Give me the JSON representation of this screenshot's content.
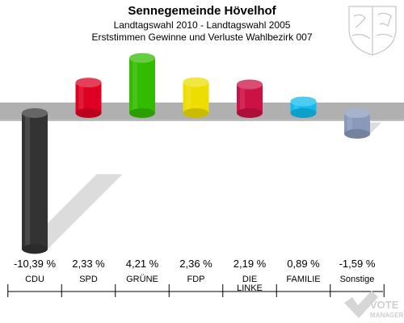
{
  "chart_data": {
    "type": "bar",
    "title": "Sennegemeinde Hövelhof",
    "subtitle_1": "Landtagswahl 2010 - Landtagswahl 2005",
    "subtitle_2": "Erststimmen Gewinne und Verluste Wahlbezirk 007",
    "categories": [
      "CDU",
      "SPD",
      "GRÜNE",
      "FDP",
      "DIE LINKE",
      "FAMILIE",
      "Sonstige"
    ],
    "category_lines": [
      [
        "CDU"
      ],
      [
        "SPD"
      ],
      [
        "GRÜNE"
      ],
      [
        "FDP"
      ],
      [
        "DIE",
        "LINKE"
      ],
      [
        "FAMILIE"
      ],
      [
        "Sonstige"
      ]
    ],
    "values": [
      -10.39,
      2.33,
      4.21,
      2.36,
      2.19,
      0.89,
      -1.59
    ],
    "value_labels": [
      "-10,39 %",
      "2,33 %",
      "4,21 %",
      "2,36 %",
      "2,19 %",
      "0,89 %",
      "-1,59 %"
    ],
    "colors": [
      "#333333",
      "#dd0022",
      "#33bb00",
      "#eedd00",
      "#cc1144",
      "#11bbee",
      "#8899bb"
    ],
    "grid": false,
    "legend": "none"
  },
  "logo": {
    "line1": "VOTE",
    "line2": "MANAGER"
  }
}
